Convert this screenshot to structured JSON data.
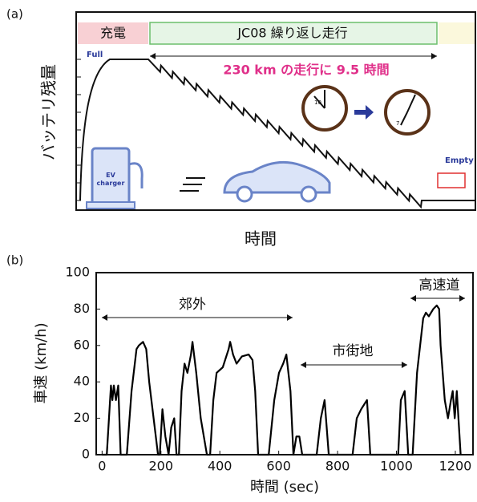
{
  "chart_data": [
    {
      "type": "schematic",
      "panel_label": "(a)",
      "ylabel": "バッテリ残量",
      "xlabel": "時間",
      "phase_charge": "充電",
      "phase_drive": "JC08 繰り返し走行",
      "full_label": "Full",
      "empty_label": "Empty",
      "annotation": "230 km の走行に 9.5 時間",
      "clock_start": "10",
      "clock_end": "7",
      "charger_label": "EV charger"
    },
    {
      "type": "line",
      "panel_label": "(b)",
      "xlabel": "時間 (sec)",
      "ylabel": "車速 (km/h)",
      "annotations": [
        "郊外",
        "市街地",
        "高速道"
      ],
      "color": "#000000",
      "x": [
        0,
        16,
        30,
        35,
        40,
        47,
        55,
        63,
        84,
        100,
        117,
        125,
        139,
        150,
        160,
        175,
        190,
        196,
        205,
        215,
        226,
        235,
        245,
        253,
        261,
        270,
        280,
        290,
        302,
        307,
        320,
        335,
        356,
        367,
        378,
        389,
        410,
        430,
        435,
        445,
        457,
        475,
        498,
        511,
        520,
        530,
        566,
        585,
        601,
        615,
        626,
        640,
        650,
        660,
        670,
        680,
        729,
        743,
        756,
        770,
        851,
        865,
        880,
        892,
        900,
        911,
        1006,
        1015,
        1028,
        1040,
        1055,
        1070,
        1091,
        1100,
        1110,
        1125,
        1137,
        1145,
        1150,
        1164,
        1175,
        1185,
        1191,
        1198,
        1205,
        1218
      ],
      "values": [
        0,
        0,
        38,
        30,
        38,
        30,
        38,
        0,
        0,
        35,
        58,
        60,
        62,
        58,
        40,
        20,
        0,
        0,
        25,
        10,
        0,
        15,
        20,
        0,
        0,
        35,
        50,
        45,
        55,
        62,
        45,
        20,
        0,
        0,
        30,
        45,
        48,
        58,
        62,
        55,
        50,
        54,
        55,
        52,
        35,
        0,
        0,
        30,
        45,
        50,
        55,
        35,
        0,
        10,
        10,
        0,
        0,
        20,
        30,
        0,
        0,
        20,
        25,
        28,
        30,
        0,
        0,
        30,
        35,
        0,
        0,
        45,
        75,
        78,
        76,
        80,
        82,
        80,
        60,
        30,
        20,
        30,
        35,
        20,
        35,
        0
      ],
      "xlim": [
        -20,
        1260
      ],
      "ylim": [
        0,
        100
      ],
      "xticks": [
        0,
        200,
        400,
        600,
        800,
        1000,
        1200
      ],
      "yticks": [
        0,
        20,
        40,
        60,
        80,
        100
      ]
    }
  ]
}
